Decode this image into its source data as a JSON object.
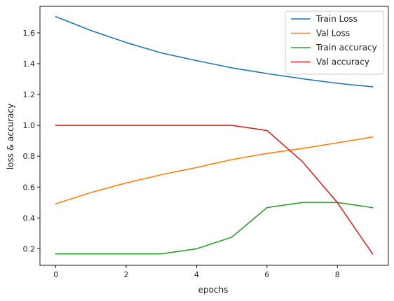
{
  "chart_data": {
    "type": "line",
    "x": [
      0,
      1,
      2,
      3,
      4,
      5,
      6,
      7,
      8,
      9
    ],
    "xlabel": "epochs",
    "ylabel": "loss & accuracy",
    "xlim": [
      -0.45,
      9.45
    ],
    "ylim": [
      0.093,
      1.772
    ],
    "xticks": [
      0,
      2,
      4,
      6,
      8
    ],
    "xtick_labels": [
      "0",
      "2",
      "4",
      "6",
      "8"
    ],
    "yticks": [
      0.2,
      0.4,
      0.6,
      0.8,
      1.0,
      1.2,
      1.4,
      1.6
    ],
    "ytick_labels": [
      "0.2",
      "0.4",
      "0.6",
      "0.8",
      "1.0",
      "1.2",
      "1.4",
      "1.6"
    ],
    "grid": false,
    "legend_position": "top-right",
    "series": [
      {
        "name": "Train Loss",
        "color": "#1f77b4",
        "values": [
          1.705,
          1.615,
          1.537,
          1.47,
          1.42,
          1.373,
          1.336,
          1.303,
          1.273,
          1.25
        ]
      },
      {
        "name": "Val Loss",
        "color": "#ff7f0e",
        "values": [
          0.492,
          0.565,
          0.627,
          0.68,
          0.727,
          0.778,
          0.818,
          0.85,
          0.887,
          0.925
        ]
      },
      {
        "name": "Train accuracy",
        "color": "#2ca02c",
        "values": [
          0.167,
          0.167,
          0.167,
          0.167,
          0.2,
          0.275,
          0.467,
          0.5,
          0.5,
          0.467
        ]
      },
      {
        "name": "Val accuracy",
        "color": "#d62728",
        "values": [
          1.0,
          1.0,
          1.0,
          1.0,
          1.0,
          1.0,
          0.967,
          0.767,
          0.5,
          0.167
        ]
      }
    ]
  }
}
